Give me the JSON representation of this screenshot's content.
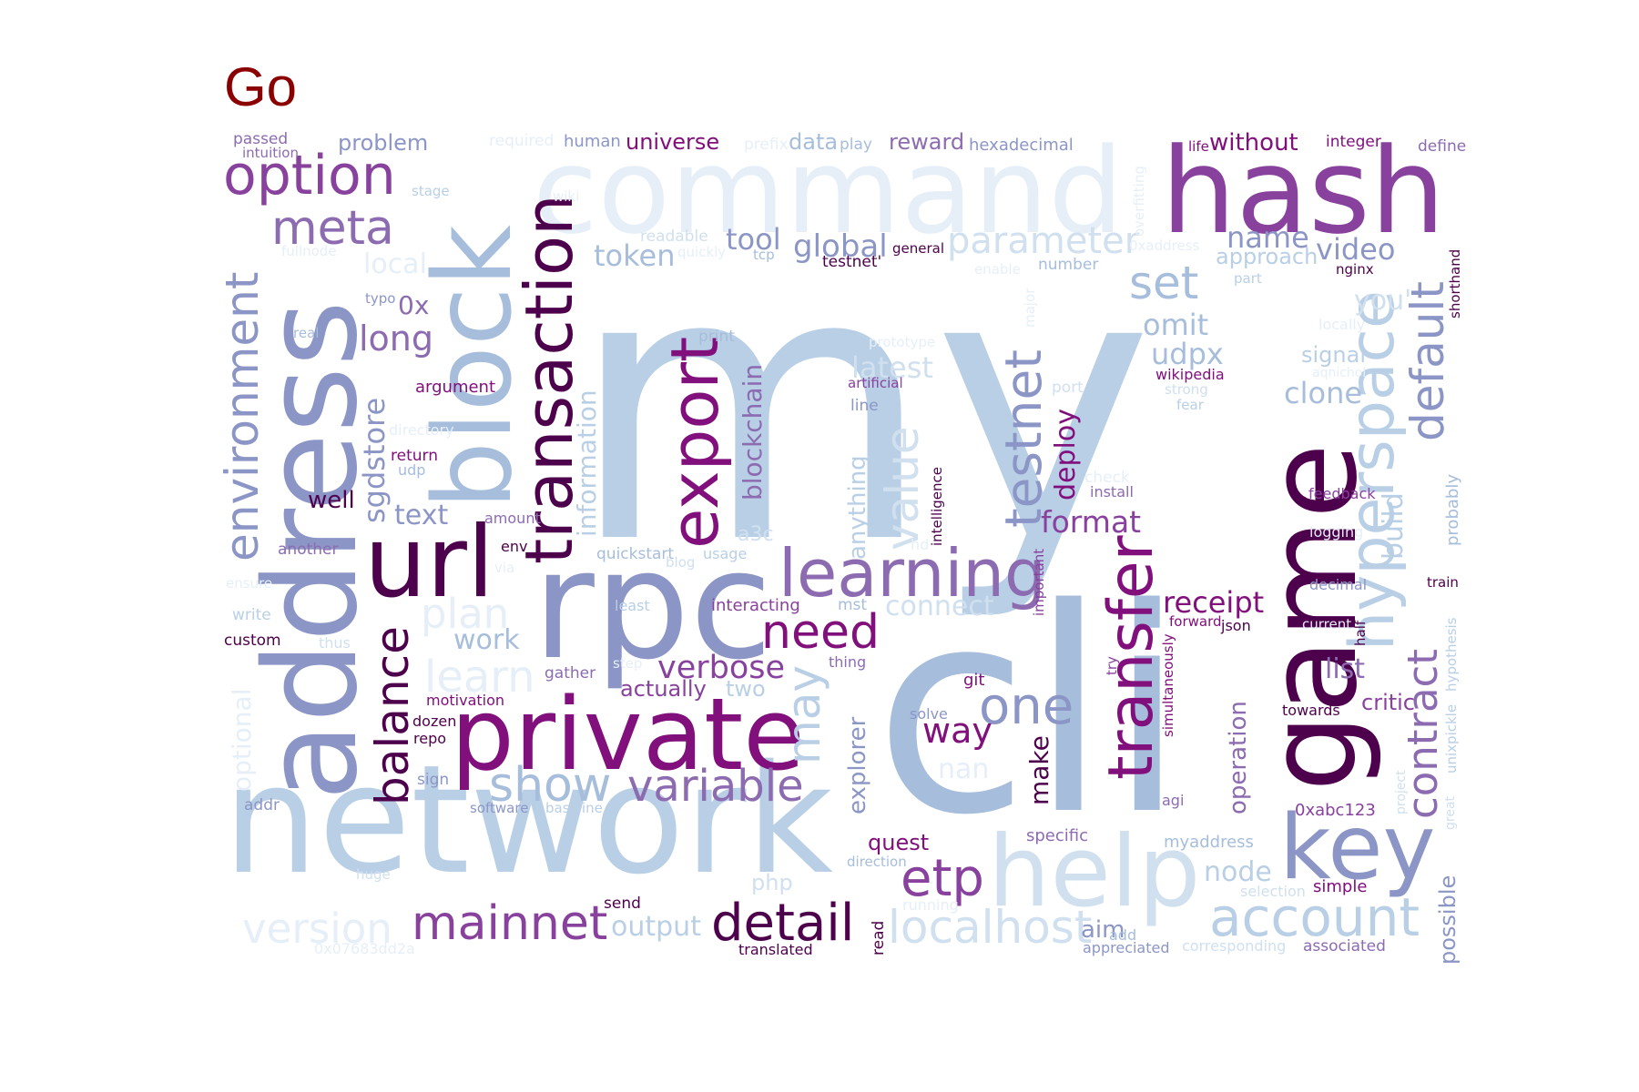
{
  "title": {
    "text": "Go",
    "color": "#8b0000"
  },
  "palette": {
    "c0": "#e6eff8",
    "c1": "#d0e0ef",
    "c2": "#b9cfe6",
    "c3": "#a6bddb",
    "c4": "#8c96c6",
    "c5": "#8c6bb1",
    "c6": "#88419d",
    "c7": "#810f7c",
    "c8": "#4d004b"
  },
  "words": [
    {
      "text": "my",
      "color": "c2",
      "rot": 0
    },
    {
      "text": "cli",
      "color": "c3",
      "rot": 0
    },
    {
      "text": "network",
      "color": "c2",
      "rot": 0
    },
    {
      "text": "address",
      "color": "c4",
      "rot": -90
    },
    {
      "text": "game",
      "color": "c8",
      "rot": -90
    },
    {
      "text": "block",
      "color": "c3",
      "rot": -90
    },
    {
      "text": "rpc",
      "color": "c4",
      "rot": 0
    },
    {
      "text": "command",
      "color": "c0",
      "rot": 0
    },
    {
      "text": "hash",
      "color": "c6",
      "rot": 0
    },
    {
      "text": "private",
      "color": "c7",
      "rot": 0
    },
    {
      "text": "url",
      "color": "c8",
      "rot": 0
    },
    {
      "text": "help",
      "color": "c1",
      "rot": 0
    },
    {
      "text": "key",
      "color": "c4",
      "rot": 0
    },
    {
      "text": "transaction",
      "color": "c8",
      "rot": -90
    },
    {
      "text": "export",
      "color": "c7",
      "rot": -90
    },
    {
      "text": "learning",
      "color": "c5",
      "rot": 0
    },
    {
      "text": "hyperspace",
      "color": "c2",
      "rot": -90
    },
    {
      "text": "transfer",
      "color": "c7",
      "rot": -90
    },
    {
      "text": "option",
      "color": "c6",
      "rot": 0
    },
    {
      "text": "meta",
      "color": "c5",
      "rot": 0
    },
    {
      "text": "environment",
      "color": "c4",
      "rot": -90
    },
    {
      "text": "balance",
      "color": "c8",
      "rot": -90
    },
    {
      "text": "testnet",
      "color": "c4",
      "rot": -90
    },
    {
      "text": "default",
      "color": "c4",
      "rot": -90
    },
    {
      "text": "mainnet",
      "color": "c6",
      "rot": 0
    },
    {
      "text": "detail",
      "color": "c8",
      "rot": 0
    },
    {
      "text": "account",
      "color": "c2",
      "rot": 0
    },
    {
      "text": "localhost",
      "color": "c1",
      "rot": 0
    },
    {
      "text": "etp",
      "color": "c6",
      "rot": 0
    },
    {
      "text": "one",
      "color": "c4",
      "rot": 0
    },
    {
      "text": "show",
      "color": "c3",
      "rot": 0
    },
    {
      "text": "variable",
      "color": "c5",
      "rot": 0
    },
    {
      "text": "need",
      "color": "c7",
      "rot": 0
    },
    {
      "text": "version",
      "color": "c0",
      "rot": 0
    },
    {
      "text": "contract",
      "color": "c5",
      "rot": -90
    },
    {
      "text": "value",
      "color": "c1",
      "rot": -90
    },
    {
      "text": "may",
      "color": "c2",
      "rot": -90
    },
    {
      "text": "set",
      "color": "c3",
      "rot": 0
    },
    {
      "text": "verbose",
      "color": "c6",
      "rot": 0
    },
    {
      "text": "parameter",
      "color": "c1",
      "rot": 0
    },
    {
      "text": "plan",
      "color": "c0",
      "rot": 0
    },
    {
      "text": "learn",
      "color": "c0",
      "rot": 0
    },
    {
      "text": "sgdstore",
      "color": "c4",
      "rot": -90
    },
    {
      "text": "blockchain",
      "color": "c5",
      "rot": -90
    },
    {
      "text": "information",
      "color": "c2",
      "rot": -90
    },
    {
      "text": "long",
      "color": "c5",
      "rot": 0
    },
    {
      "text": "global",
      "color": "c4",
      "rot": 0
    },
    {
      "text": "token",
      "color": "c3",
      "rot": 0
    },
    {
      "text": "tool",
      "color": "c4",
      "rot": 0
    },
    {
      "text": "format",
      "color": "c6",
      "rot": 0
    },
    {
      "text": "receipt",
      "color": "c7",
      "rot": 0
    },
    {
      "text": "way",
      "color": "c7",
      "rot": 0
    },
    {
      "text": "video",
      "color": "c4",
      "rot": 0
    },
    {
      "text": "name",
      "color": "c4",
      "rot": 0
    },
    {
      "text": "udpx",
      "color": "c3",
      "rot": 0
    },
    {
      "text": "omit",
      "color": "c3",
      "rot": 0
    },
    {
      "text": "clone",
      "color": "c3",
      "rot": 0
    },
    {
      "text": "list",
      "color": "c5",
      "rot": 0
    },
    {
      "text": "node",
      "color": "c2",
      "rot": 0
    },
    {
      "text": "output",
      "color": "c2",
      "rot": 0
    },
    {
      "text": "work",
      "color": "c3",
      "rot": 0
    },
    {
      "text": "text",
      "color": "c4",
      "rot": 0
    },
    {
      "text": "latest",
      "color": "c1",
      "rot": 0
    },
    {
      "text": "connect",
      "color": "c1",
      "rot": 0
    },
    {
      "text": "local",
      "color": "c0",
      "rot": 0
    },
    {
      "text": "deploy",
      "color": "c7",
      "rot": -90
    },
    {
      "text": "make",
      "color": "c8",
      "rot": -90
    },
    {
      "text": "explorer",
      "color": "c4",
      "rot": -90
    },
    {
      "text": "operation",
      "color": "c5",
      "rot": -90
    },
    {
      "text": "build",
      "color": "c2",
      "rot": -90
    },
    {
      "text": "anything",
      "color": "c2",
      "rot": -90
    },
    {
      "text": "possible",
      "color": "c4",
      "rot": -90
    },
    {
      "text": "approach",
      "color": "c2",
      "rot": 0
    },
    {
      "text": "problem",
      "color": "c4",
      "rot": 0
    },
    {
      "text": "universe",
      "color": "c7",
      "rot": 0
    },
    {
      "text": "reward",
      "color": "c5",
      "rot": 0
    },
    {
      "text": "without",
      "color": "c7",
      "rot": 0
    },
    {
      "text": "0x",
      "color": "c5",
      "rot": 0
    },
    {
      "text": "actually",
      "color": "c6",
      "rot": 0
    },
    {
      "text": "two",
      "color": "c2",
      "rot": 0
    },
    {
      "text": "critic",
      "color": "c6",
      "rot": 0
    },
    {
      "text": "aim",
      "color": "c4",
      "rot": 0
    },
    {
      "text": "quest",
      "color": "c7",
      "rot": 0
    },
    {
      "text": "nan",
      "color": "c0",
      "rot": 0
    },
    {
      "text": "you'",
      "color": "c1",
      "rot": 0
    },
    {
      "text": "data",
      "color": "c3",
      "rot": 0
    },
    {
      "text": "well",
      "color": "c8",
      "rot": 0
    },
    {
      "text": "0xabc123",
      "color": "c6",
      "rot": 0
    },
    {
      "text": "myaddress",
      "color": "c3",
      "rot": 0
    },
    {
      "text": "argument",
      "color": "c7",
      "rot": 0
    },
    {
      "text": "specific",
      "color": "c5",
      "rot": 0
    },
    {
      "text": "a3c",
      "color": "c1",
      "rot": 0
    },
    {
      "text": "interacting",
      "color": "c6",
      "rot": 0
    },
    {
      "text": "signal",
      "color": "c2",
      "rot": 0
    },
    {
      "text": "hexadecimal",
      "color": "c4",
      "rot": 0
    },
    {
      "text": "another",
      "color": "c5",
      "rot": 0
    },
    {
      "text": "quickstart",
      "color": "c3",
      "rot": 0
    },
    {
      "text": "human",
      "color": "c4",
      "rot": 0
    },
    {
      "text": "integer",
      "color": "c7",
      "rot": 0
    },
    {
      "text": "define",
      "color": "c5",
      "rot": 0
    },
    {
      "text": "feedback",
      "color": "c6",
      "rot": 0
    },
    {
      "text": "decimal",
      "color": "c4",
      "rot": 0
    },
    {
      "text": "simple",
      "color": "c7",
      "rot": 0
    },
    {
      "text": "associated",
      "color": "c5",
      "rot": 0
    },
    {
      "text": "custom",
      "color": "c8",
      "rot": 0
    },
    {
      "text": "print",
      "color": "c3",
      "rot": 0
    },
    {
      "text": "number",
      "color": "c3",
      "rot": 0
    },
    {
      "text": "passed",
      "color": "c5",
      "rot": 0
    },
    {
      "text": "intuition",
      "color": "c5",
      "rot": 0
    },
    {
      "text": "return",
      "color": "c7",
      "rot": 0
    },
    {
      "text": "udp",
      "color": "c3",
      "rot": 0
    },
    {
      "text": "amount",
      "color": "c5",
      "rot": 0
    },
    {
      "text": "env",
      "color": "c8",
      "rot": 0
    },
    {
      "text": "usage",
      "color": "c2",
      "rot": 0
    },
    {
      "text": "mst",
      "color": "c3",
      "rot": 0
    },
    {
      "text": "json",
      "color": "c8",
      "rot": 0
    },
    {
      "text": "forward",
      "color": "c7",
      "rot": 0
    },
    {
      "text": "towards",
      "color": "c8",
      "rot": 0
    },
    {
      "text": "git",
      "color": "c7",
      "rot": 0
    },
    {
      "text": "solve",
      "color": "c4",
      "rot": 0
    },
    {
      "text": "agi",
      "color": "c5",
      "rot": 0
    },
    {
      "text": "thing",
      "color": "c5",
      "rot": 0
    },
    {
      "text": "gather",
      "color": "c5",
      "rot": 0
    },
    {
      "text": "motivation",
      "color": "c7",
      "rot": 0
    },
    {
      "text": "dozen",
      "color": "c8",
      "rot": 0
    },
    {
      "text": "repo",
      "color": "c8",
      "rot": 0
    },
    {
      "text": "sign",
      "color": "c4",
      "rot": 0
    },
    {
      "text": "addr",
      "color": "c4",
      "rot": 0
    },
    {
      "text": "software",
      "color": "c4",
      "rot": 0
    },
    {
      "text": "baseline",
      "color": "c2",
      "rot": 0
    },
    {
      "text": "send",
      "color": "c8",
      "rot": 0
    },
    {
      "text": "translated",
      "color": "c8",
      "rot": 0
    },
    {
      "text": "php",
      "color": "c1",
      "rot": 0
    },
    {
      "text": "direction",
      "color": "c3",
      "rot": 0
    },
    {
      "text": "add",
      "color": "c3",
      "rot": 0
    },
    {
      "text": "appreciated",
      "color": "c4",
      "rot": 0
    },
    {
      "text": "corresponding",
      "color": "c1",
      "rot": 0
    },
    {
      "text": "selection",
      "color": "c1",
      "rot": 0
    },
    {
      "text": "huge",
      "color": "c1",
      "rot": 0
    },
    {
      "text": "write",
      "color": "c2",
      "rot": 0
    },
    {
      "text": "ensure",
      "color": "c0",
      "rot": 0
    },
    {
      "text": "thus",
      "color": "c1",
      "rot": 0
    },
    {
      "text": "least",
      "color": "c2",
      "rot": 0
    },
    {
      "text": "step",
      "color": "c0",
      "rot": 0
    },
    {
      "text": "blog",
      "color": "c1",
      "rot": 0
    },
    {
      "text": "tcp",
      "color": "c3",
      "rot": 0
    },
    {
      "text": "testnet'",
      "color": "c8",
      "rot": 0
    },
    {
      "text": "general",
      "color": "c8",
      "rot": 0
    },
    {
      "text": "quickly",
      "color": "c0",
      "rot": 0
    },
    {
      "text": "enable",
      "color": "c0",
      "rot": 0
    },
    {
      "text": "0xaddress",
      "color": "c0",
      "rot": 0
    },
    {
      "text": "part",
      "color": "c2",
      "rot": 0
    },
    {
      "text": "nginx",
      "color": "c8",
      "rot": 0
    },
    {
      "text": "locally",
      "color": "c0",
      "rot": 0
    },
    {
      "text": "aqnichol",
      "color": "c0",
      "rot": 0
    },
    {
      "text": "wikipedia",
      "color": "c7",
      "rot": 0
    },
    {
      "text": "strong",
      "color": "c1",
      "rot": 0
    },
    {
      "text": "fear",
      "color": "c2",
      "rot": 0
    },
    {
      "text": "artificial",
      "color": "c6",
      "rot": 0
    },
    {
      "text": "line",
      "color": "c4",
      "rot": 0
    },
    {
      "text": "port",
      "color": "c1",
      "rot": 0
    },
    {
      "text": "check",
      "color": "c0",
      "rot": 0
    },
    {
      "text": "install",
      "color": "c5",
      "rot": 0
    },
    {
      "text": "logging",
      "color": "c0",
      "rot": 0
    },
    {
      "text": "current",
      "color": "c0",
      "rot": 0
    },
    {
      "text": "train",
      "color": "c8",
      "rot": 0
    },
    {
      "text": "life",
      "color": "c7",
      "rot": 0
    },
    {
      "text": "play",
      "color": "c3",
      "rot": 0
    },
    {
      "text": "prefix",
      "color": "c0",
      "rot": 0
    },
    {
      "text": "required",
      "color": "c0",
      "rot": 0
    },
    {
      "text": "readable",
      "color": "c1",
      "rot": 0
    },
    {
      "text": "stage",
      "color": "c2",
      "rot": 0
    },
    {
      "text": "wiki",
      "color": "c0",
      "rot": 0
    },
    {
      "text": "fullnode",
      "color": "c0",
      "rot": 0
    },
    {
      "text": "typo",
      "color": "c4",
      "rot": 0
    },
    {
      "text": "real",
      "color": "c3",
      "rot": 0
    },
    {
      "text": "directory",
      "color": "c0",
      "rot": 0
    },
    {
      "text": "prototype",
      "color": "c0",
      "rot": 0
    },
    {
      "text": "running",
      "color": "c0",
      "rot": 0
    },
    {
      "text": "via",
      "color": "c0",
      "rot": 0
    },
    {
      "text": "hd",
      "color": "c0",
      "rot": 0
    },
    {
      "text": "0x07683dd2a",
      "color": "c0",
      "rot": 0
    },
    {
      "text": "optional",
      "color": "c0",
      "rot": -90
    },
    {
      "text": "overfitting",
      "color": "c0",
      "rot": -90
    },
    {
      "text": "major",
      "color": "c0",
      "rot": -90
    },
    {
      "text": "intelligence",
      "color": "c8",
      "rot": -90
    },
    {
      "text": "important",
      "color": "c6",
      "rot": -90
    },
    {
      "text": "try",
      "color": "c6",
      "rot": -90
    },
    {
      "text": "simultaneously",
      "color": "c7",
      "rot": -90
    },
    {
      "text": "half",
      "color": "c8",
      "rot": -90
    },
    {
      "text": "shorthand",
      "color": "c8",
      "rot": -90
    },
    {
      "text": "probably",
      "color": "c3",
      "rot": -90
    },
    {
      "text": "hypothesis",
      "color": "c2",
      "rot": -90
    },
    {
      "text": "unixpickle",
      "color": "c2",
      "rot": -90
    },
    {
      "text": "project",
      "color": "c1",
      "rot": -90
    },
    {
      "text": "great",
      "color": "c1",
      "rot": -90
    },
    {
      "text": "read",
      "color": "c8",
      "rot": -90
    }
  ]
}
